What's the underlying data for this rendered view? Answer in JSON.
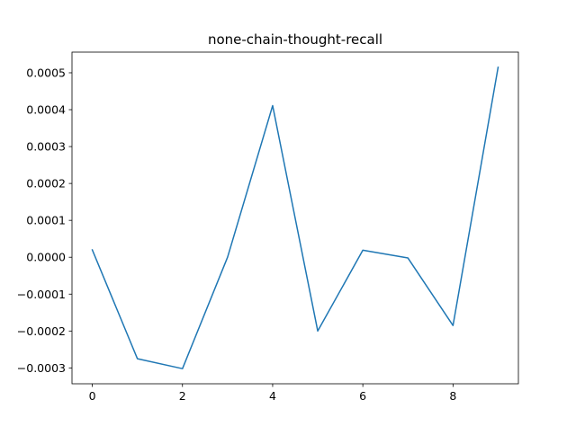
{
  "chart_data": {
    "type": "line",
    "title": "none-chain-thought-recall",
    "xlabel": "",
    "ylabel": "",
    "x": [
      0,
      1,
      2,
      3,
      4,
      5,
      6,
      7,
      8,
      9
    ],
    "series": [
      {
        "values": [
          2e-05,
          -0.000275,
          -0.000302,
          0.0,
          0.000411,
          -0.0002,
          1.9e-05,
          -2e-06,
          -0.000185,
          0.000515
        ]
      }
    ],
    "xlim": [
      -0.45,
      9.45
    ],
    "ylim": [
      -0.000343,
      0.000556
    ],
    "x_ticks": [
      0,
      2,
      4,
      6,
      8
    ],
    "x_tick_labels": [
      "0",
      "2",
      "4",
      "6",
      "8"
    ],
    "y_ticks": [
      -0.0003,
      -0.0002,
      -0.0001,
      0.0,
      0.0001,
      0.0002,
      0.0003,
      0.0004,
      0.0005
    ],
    "y_tick_labels": [
      "−0.0003",
      "−0.0002",
      "−0.0001",
      "0.0000",
      "0.0001",
      "0.0002",
      "0.0003",
      "0.0004",
      "0.0005"
    ],
    "grid": false,
    "legend": "none",
    "line_color": "#1f77b4"
  }
}
